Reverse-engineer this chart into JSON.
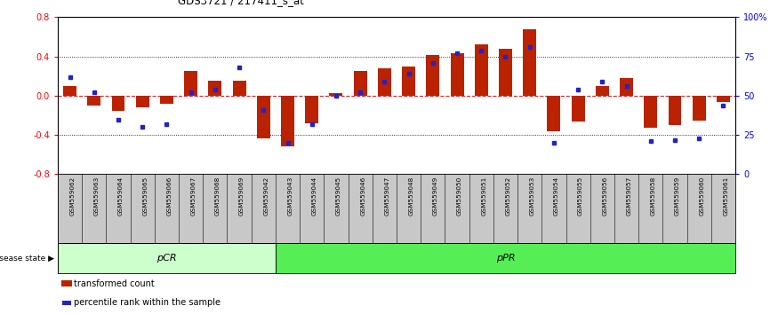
{
  "title": "GDS3721 / 217411_s_at",
  "categories": [
    "GSM559062",
    "GSM559063",
    "GSM559064",
    "GSM559065",
    "GSM559066",
    "GSM559067",
    "GSM559068",
    "GSM559069",
    "GSM559042",
    "GSM559043",
    "GSM559044",
    "GSM559045",
    "GSM559046",
    "GSM559047",
    "GSM559048",
    "GSM559049",
    "GSM559050",
    "GSM559051",
    "GSM559052",
    "GSM559053",
    "GSM559054",
    "GSM559055",
    "GSM559056",
    "GSM559057",
    "GSM559058",
    "GSM559059",
    "GSM559060",
    "GSM559061"
  ],
  "bar_values": [
    0.1,
    -0.1,
    -0.15,
    -0.12,
    -0.08,
    0.25,
    0.15,
    0.15,
    -0.43,
    -0.52,
    -0.28,
    0.03,
    0.25,
    0.28,
    0.3,
    0.42,
    0.43,
    0.52,
    0.48,
    0.68,
    -0.36,
    -0.26,
    0.1,
    0.18,
    -0.33,
    -0.3,
    -0.25,
    -0.06
  ],
  "percentile_values": [
    62,
    52,
    35,
    30,
    32,
    52,
    54,
    68,
    41,
    20,
    32,
    50,
    52,
    59,
    64,
    71,
    77,
    79,
    75,
    81,
    20,
    54,
    59,
    56,
    21,
    22,
    23,
    44
  ],
  "pcr_count": 9,
  "ppr_count": 19,
  "ylim": [
    -0.8,
    0.8
  ],
  "yticks_left": [
    -0.8,
    -0.4,
    0.0,
    0.4,
    0.8
  ],
  "right_yticks": [
    0,
    25,
    50,
    75,
    100
  ],
  "right_ytick_labels": [
    "0",
    "25",
    "50",
    "75",
    "100%"
  ],
  "bar_color": "#bb2200",
  "dot_color": "#2222cc",
  "hline_color": "#dd2222",
  "dot_line_color": "#000000",
  "pcr_color": "#ccffcc",
  "ppr_color": "#55ee55",
  "xlabel_area_color": "#c8c8c8",
  "disease_state_label": "disease state",
  "pcr_label": "pCR",
  "ppr_label": "pPR",
  "legend_bar_label": "transformed count",
  "legend_dot_label": "percentile rank within the sample"
}
